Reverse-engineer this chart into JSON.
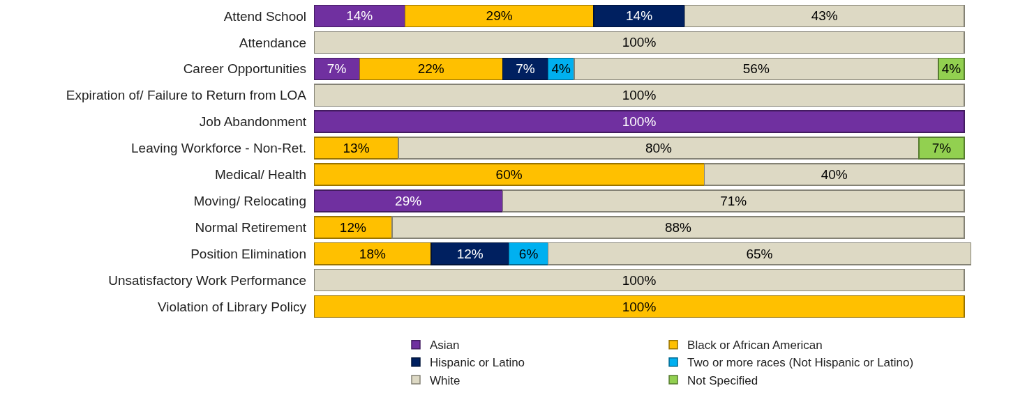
{
  "chart_data": {
    "type": "bar",
    "orientation": "horizontal",
    "stacked": true,
    "legend": "bottom",
    "tick_labels": "y",
    "categories": [
      "Attend School",
      "Attendance",
      "Career Opportunities",
      "Expiration of/ Failure to Return from LOA",
      "Job Abandonment",
      "Leaving Workforce - Non-Ret.",
      "Medical/ Health",
      "Moving/ Relocating",
      "Normal Retirement",
      "Position Elimination",
      "Unsatisfactory Work Performance",
      "Violation of Library Policy"
    ],
    "series": [
      {
        "name": "Asian",
        "color": "#7030a0",
        "values": [
          14,
          null,
          7,
          null,
          100,
          null,
          null,
          29,
          null,
          null,
          null,
          null
        ],
        "value_labels": [
          "14%",
          null,
          "7%",
          null,
          "100%",
          null,
          null,
          "29%",
          null,
          null,
          null,
          null
        ]
      },
      {
        "name": "Black or African American",
        "color": "#ffc000",
        "values": [
          29,
          null,
          22,
          null,
          null,
          13,
          60,
          null,
          12,
          18,
          null,
          100
        ],
        "value_labels": [
          "29%",
          null,
          "22%",
          null,
          null,
          "13%",
          "60%",
          null,
          "12%",
          "18%",
          null,
          "100%"
        ]
      },
      {
        "name": "Hispanic or Latino",
        "color": "#002060",
        "values": [
          14,
          null,
          7,
          null,
          null,
          null,
          null,
          null,
          null,
          12,
          null,
          null
        ],
        "value_labels": [
          "14%",
          null,
          "7%",
          null,
          null,
          null,
          null,
          null,
          null,
          "12%",
          null,
          null
        ]
      },
      {
        "name": "Two or more races (Not Hispanic or Latino)",
        "color": "#00b0f0",
        "values": [
          null,
          null,
          4,
          null,
          null,
          null,
          null,
          null,
          null,
          6,
          null,
          null
        ],
        "value_labels": [
          null,
          null,
          "4%",
          null,
          null,
          null,
          null,
          null,
          null,
          "6%",
          null,
          null
        ]
      },
      {
        "name": "White",
        "color": "#ddd9c4",
        "values": [
          43,
          100,
          56,
          100,
          null,
          80,
          40,
          71,
          88,
          65,
          100,
          null
        ],
        "value_labels": [
          "43%",
          "100%",
          "56%",
          "100%",
          null,
          "80%",
          "40%",
          "71%",
          "88%",
          "65%",
          "100%",
          null
        ]
      },
      {
        "name": "Not Specified",
        "color": "#92d050",
        "values": [
          null,
          null,
          4,
          null,
          null,
          7,
          null,
          null,
          null,
          null,
          null,
          null
        ],
        "value_labels": [
          null,
          null,
          "4%",
          null,
          null,
          "7%",
          null,
          null,
          null,
          null,
          null,
          null
        ]
      }
    ]
  }
}
